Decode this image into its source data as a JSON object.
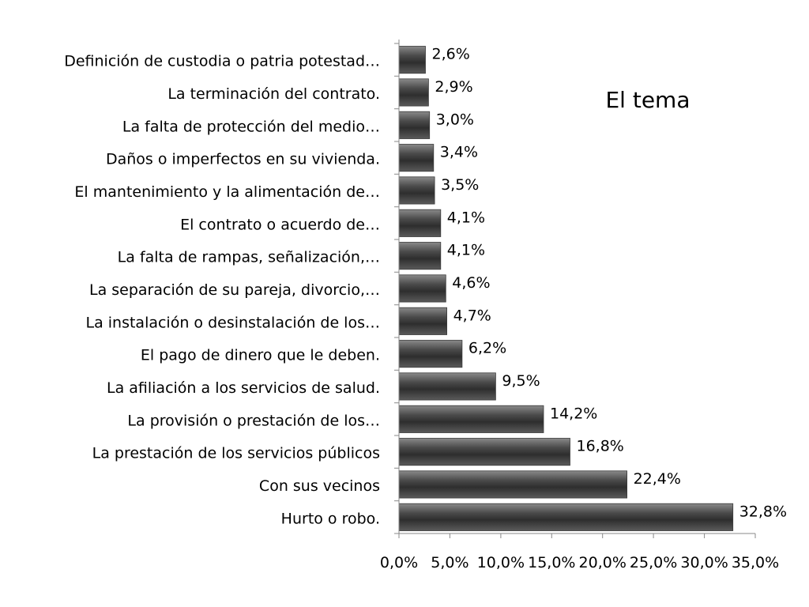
{
  "chart_data": {
    "type": "bar",
    "orientation": "horizontal",
    "title": "El tema",
    "xlabel": "",
    "ylabel": "",
    "xlim": [
      0,
      35
    ],
    "grid": false,
    "legend": "none",
    "bar_color": "#555555",
    "categories": [
      "Hurto o robo.",
      "Con sus vecinos",
      "La prestación de los servicios públicos",
      "La provisión o prestación de los…",
      "La afiliación a los servicios de salud.",
      "El pago de dinero que le deben.",
      "La instalación o desinstalación de los…",
      "La separación de su pareja, divorcio,…",
      "La falta de rampas, señalización,…",
      "El contrato o acuerdo de…",
      "El mantenimiento y la alimentación de…",
      "Daños o imperfectos en su vivienda.",
      "La falta de protección del medio…",
      "La terminación del contrato.",
      "Definición de custodia o patria potestad…"
    ],
    "values": [
      32.8,
      22.4,
      16.8,
      14.2,
      9.5,
      6.2,
      4.7,
      4.6,
      4.1,
      4.1,
      3.5,
      3.4,
      3.0,
      2.9,
      2.6
    ],
    "value_labels": [
      "32,8%",
      "22,4%",
      "16,8%",
      "14,2%",
      "9,5%",
      "6,2%",
      "4,7%",
      "4,6%",
      "4,1%",
      "4,1%",
      "3,5%",
      "3,4%",
      "3,0%",
      "2,9%",
      "2,6%"
    ],
    "ticks": [
      0,
      5,
      10,
      15,
      20,
      25,
      30,
      35
    ],
    "tick_labels": [
      "0,0%",
      "5,0%",
      "10,0%",
      "15,0%",
      "20,0%",
      "25,0%",
      "30,0%",
      "35,0%"
    ]
  }
}
